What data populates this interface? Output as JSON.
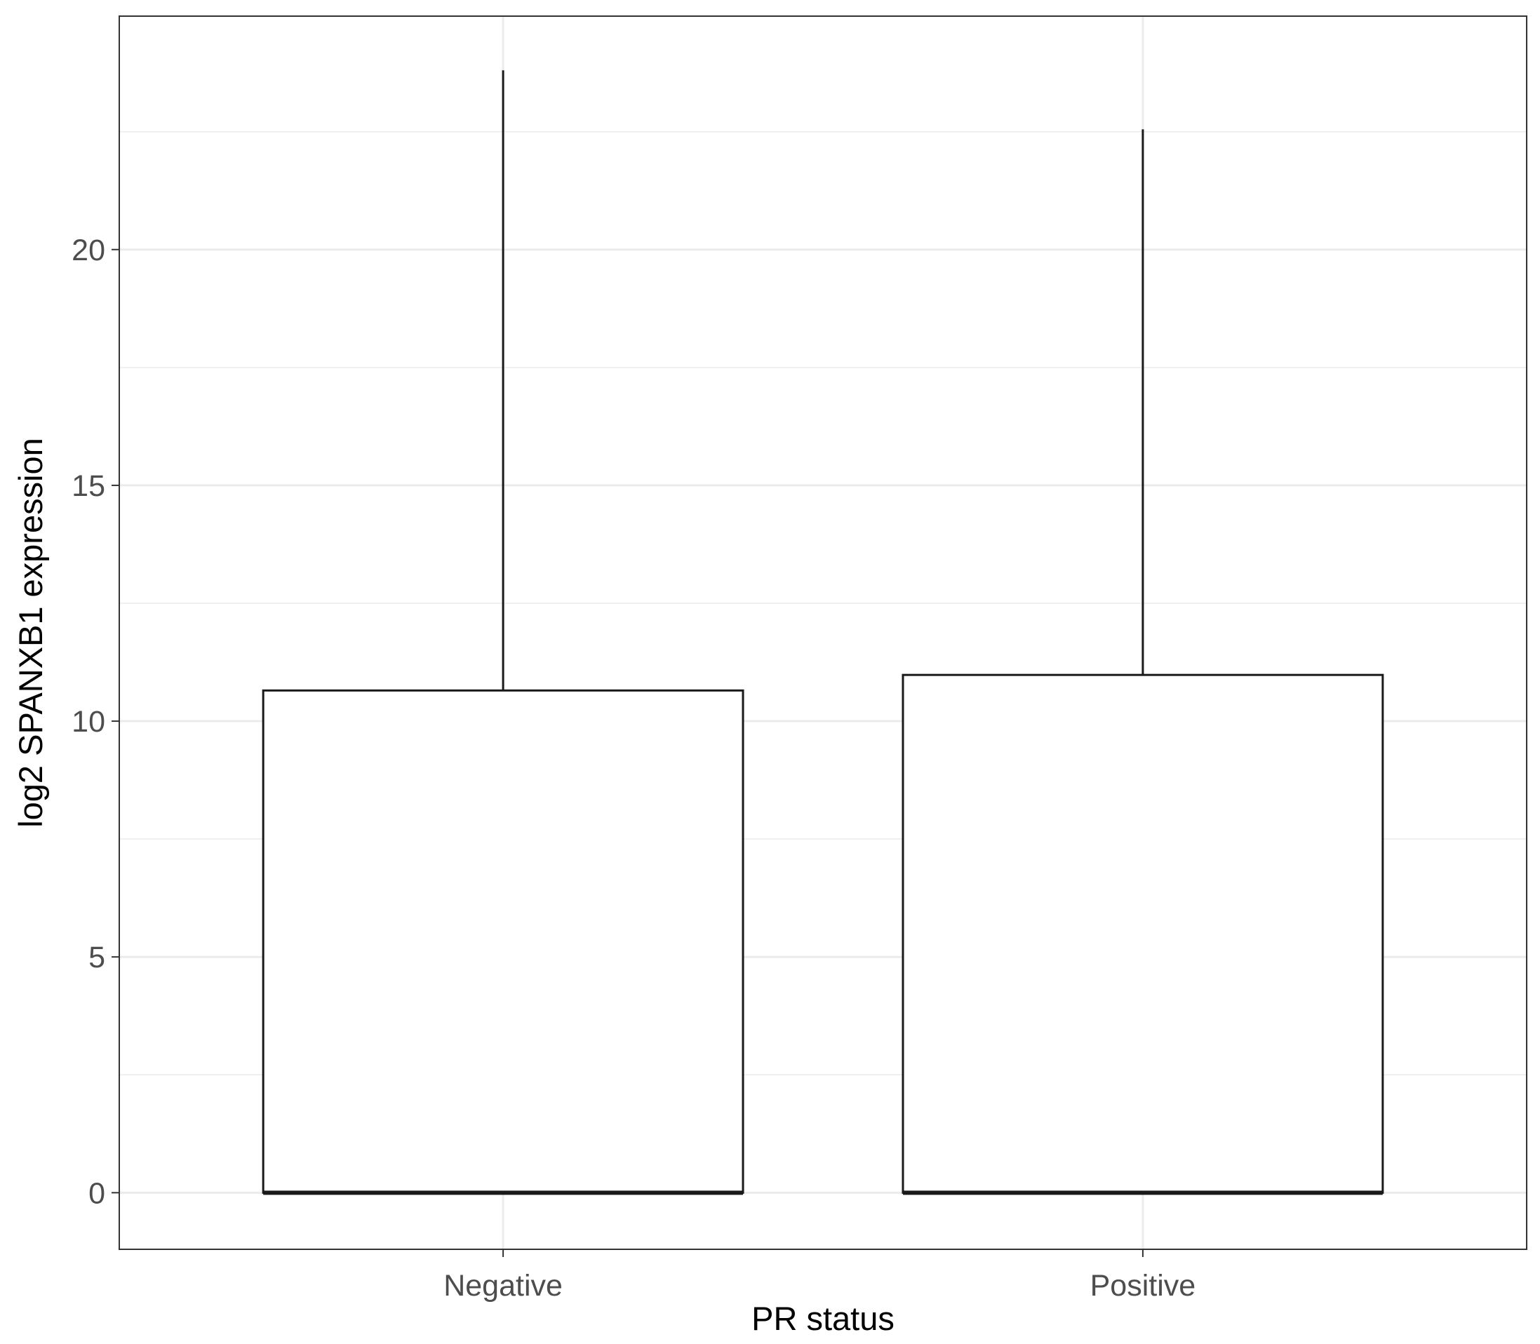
{
  "chart_data": {
    "type": "boxplot",
    "xlabel": "PR status",
    "ylabel": "log2 SPANXB1 expression",
    "categories": [
      "Negative",
      "Positive"
    ],
    "boxes": [
      {
        "category": "Negative",
        "min": 0,
        "q1": 0,
        "median": 0,
        "q3": 10.65,
        "max": 23.8
      },
      {
        "category": "Positive",
        "min": 0,
        "q1": 0,
        "median": 0,
        "q3": 10.98,
        "max": 22.55
      }
    ],
    "ylim": [
      -1.2,
      24.95
    ],
    "yticks": [
      0,
      5,
      10,
      15,
      20
    ],
    "ytick_labels": [
      "0",
      "5",
      "10",
      "15",
      "20"
    ],
    "grid": true,
    "colors": {
      "panel_border": "#333333",
      "grid_major": "#ebebeb",
      "grid_minor": "#f2f2f2",
      "box_line": "#1a1a1a",
      "box_fill": "#ffffff"
    }
  }
}
